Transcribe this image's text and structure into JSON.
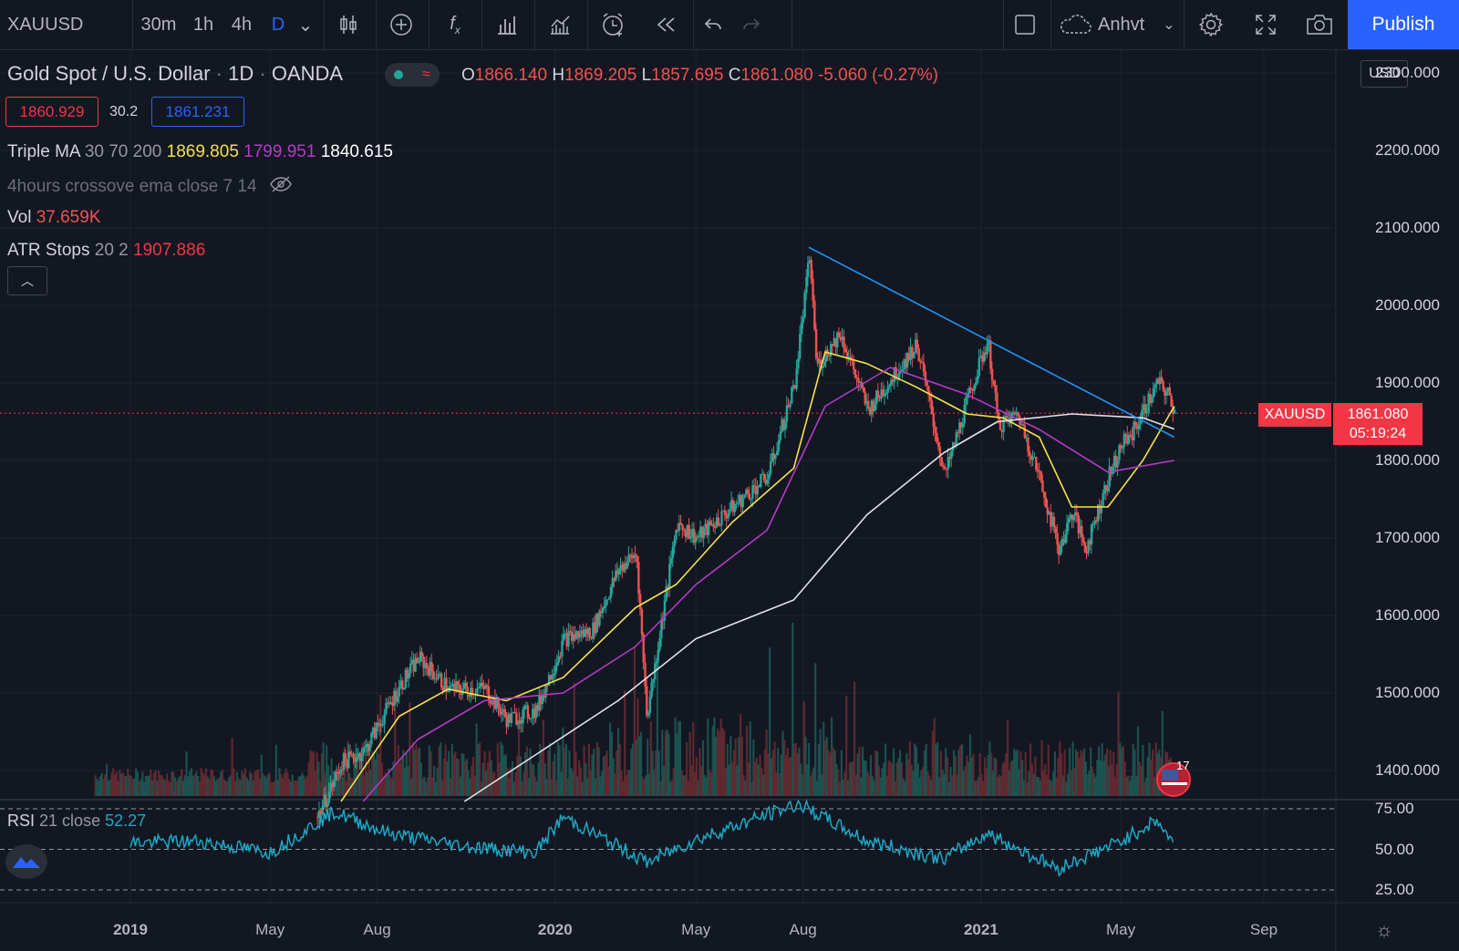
{
  "toolbar": {
    "symbol": "XAUUSD",
    "intervals": [
      "30m",
      "1h",
      "4h",
      "D"
    ],
    "active_interval": "D",
    "layout_name": "Anhvt",
    "publish_label": "Publish"
  },
  "legend": {
    "title": "Gold Spot / U.S. Dollar",
    "interval": "1D",
    "source": "OANDA",
    "ohlc": {
      "o_label": "O",
      "o": "1866.140",
      "h_label": "H",
      "h": "1869.205",
      "l_label": "L",
      "l": "1857.695",
      "c_label": "C",
      "c": "1861.080",
      "change": "-5.060 (-0.27%)"
    },
    "bid": "1860.929",
    "spread": "30.2",
    "ask": "1861.231",
    "triple_ma": {
      "label": "Triple MA",
      "params": "30 70 200",
      "v1": "1869.805",
      "v2": "1799.951",
      "v3": "1840.615"
    },
    "crossover": {
      "label": "4hours crossove ema close 7 14"
    },
    "vol": {
      "label": "Vol",
      "value": "37.659K"
    },
    "atr": {
      "label": "ATR Stops",
      "params": "20 2",
      "value": "1907.886"
    },
    "rsi": {
      "label": "RSI",
      "params": "21 close",
      "value": "52.27"
    }
  },
  "price_axis": {
    "currency": "USD",
    "labels": [
      "2300.000",
      "2200.000",
      "2100.000",
      "2000.000",
      "1900.000",
      "1800.000",
      "1700.000",
      "1600.000",
      "1500.000",
      "1400.000"
    ],
    "rsi_labels": [
      "75.00",
      "50.00",
      "25.00"
    ],
    "last_price": "1861.080",
    "countdown": "05:19:24",
    "symbol_tag": "XAUUSD"
  },
  "time_axis": [
    "2019",
    "May",
    "Aug",
    "2020",
    "May",
    "Aug",
    "2021",
    "May",
    "Sep"
  ],
  "events": {
    "count": "17"
  },
  "colors": {
    "bg": "#131722",
    "up": "#26a69a",
    "down": "#ef5350",
    "ma30": "#f5e14a",
    "ma70": "#b43bc6",
    "ma200": "#e0e3eb",
    "trend": "#2196f3",
    "rsi": "#1fa7c4",
    "accent": "#2962ff"
  },
  "chart_data": {
    "type": "line",
    "title": "Gold Spot / U.S. Dollar",
    "xlabel": "",
    "ylabel": "",
    "ylim": [
      1360,
      2330
    ],
    "series": [
      {
        "name": "XAUUSD",
        "x": [
          "2019-06-10",
          "2019-07-01",
          "2019-07-20",
          "2019-08-20",
          "2019-09-05",
          "2019-10-01",
          "2019-11-01",
          "2019-11-20",
          "2019-12-15",
          "2020-01-08",
          "2020-02-01",
          "2020-02-24",
          "2020-03-10",
          "2020-03-19",
          "2020-04-14",
          "2020-05-01",
          "2020-06-01",
          "2020-07-01",
          "2020-07-24",
          "2020-08-06",
          "2020-08-12",
          "2020-09-01",
          "2020-09-25",
          "2020-10-15",
          "2020-11-06",
          "2020-11-30",
          "2020-12-20",
          "2021-01-06",
          "2021-01-15",
          "2021-02-01",
          "2021-02-20",
          "2021-03-08",
          "2021-03-20",
          "2021-03-31",
          "2021-04-20",
          "2021-05-01",
          "2021-05-10",
          "2021-06-01",
          "2021-06-10",
          "2021-06-16"
        ],
        "y": [
          1340,
          1410,
          1425,
          1510,
          1545,
          1505,
          1505,
          1465,
          1478,
          1570,
          1580,
          1660,
          1680,
          1470,
          1720,
          1700,
          1740,
          1780,
          1900,
          2065,
          1920,
          1965,
          1865,
          1905,
          1950,
          1780,
          1880,
          1955,
          1845,
          1860,
          1775,
          1685,
          1735,
          1685,
          1780,
          1820,
          1835,
          1900,
          1885,
          1861
        ]
      },
      {
        "name": "Triple MA 30",
        "x": [
          "2019-07-01",
          "2019-08-20",
          "2019-10-01",
          "2019-11-20",
          "2020-01-08",
          "2020-03-10",
          "2020-04-14",
          "2020-06-01",
          "2020-07-24",
          "2020-08-20",
          "2020-09-25",
          "2020-11-06",
          "2020-12-20",
          "2021-01-20",
          "2021-02-20",
          "2021-03-20",
          "2021-04-20",
          "2021-05-20",
          "2021-06-16"
        ],
        "y": [
          1360,
          1470,
          1505,
          1490,
          1520,
          1610,
          1640,
          1720,
          1790,
          1940,
          1925,
          1895,
          1860,
          1855,
          1830,
          1740,
          1740,
          1800,
          1869.805
        ]
      },
      {
        "name": "Triple MA 70",
        "x": [
          "2019-07-20",
          "2019-09-05",
          "2019-11-01",
          "2020-01-08",
          "2020-03-10",
          "2020-05-01",
          "2020-07-01",
          "2020-08-20",
          "2020-10-15",
          "2020-12-20",
          "2021-02-20",
          "2021-04-20",
          "2021-06-16"
        ],
        "y": [
          1360,
          1440,
          1490,
          1500,
          1560,
          1640,
          1710,
          1870,
          1920,
          1885,
          1840,
          1785,
          1799.951
        ]
      },
      {
        "name": "Triple MA 200",
        "x": [
          "2019-10-15",
          "2019-12-15",
          "2020-02-24",
          "2020-05-01",
          "2020-07-24",
          "2020-09-25",
          "2020-11-30",
          "2021-01-15",
          "2021-03-20",
          "2021-05-20",
          "2021-06-16"
        ],
        "y": [
          1360,
          1420,
          1490,
          1570,
          1620,
          1730,
          1810,
          1850,
          1860,
          1855,
          1840.615
        ]
      }
    ],
    "rsi": {
      "name": "RSI 21 close",
      "x": [
        "2019-01-01",
        "2019-03-01",
        "2019-05-01",
        "2019-06-25",
        "2019-08-10",
        "2019-10-15",
        "2019-12-15",
        "2020-01-08",
        "2020-03-20",
        "2020-05-01",
        "2020-07-28",
        "2020-09-25",
        "2020-11-30",
        "2021-01-06",
        "2021-03-08",
        "2021-05-01",
        "2021-06-01",
        "2021-06-16"
      ],
      "y": [
        54,
        55,
        48,
        73,
        60,
        52,
        48,
        70,
        42,
        56,
        78,
        55,
        44,
        60,
        38,
        55,
        68,
        52.27
      ],
      "levels": [
        75,
        50,
        25
      ]
    },
    "trendline": {
      "x": [
        "2020-08-06",
        "2021-06-16"
      ],
      "y": [
        2075,
        1830
      ]
    }
  }
}
